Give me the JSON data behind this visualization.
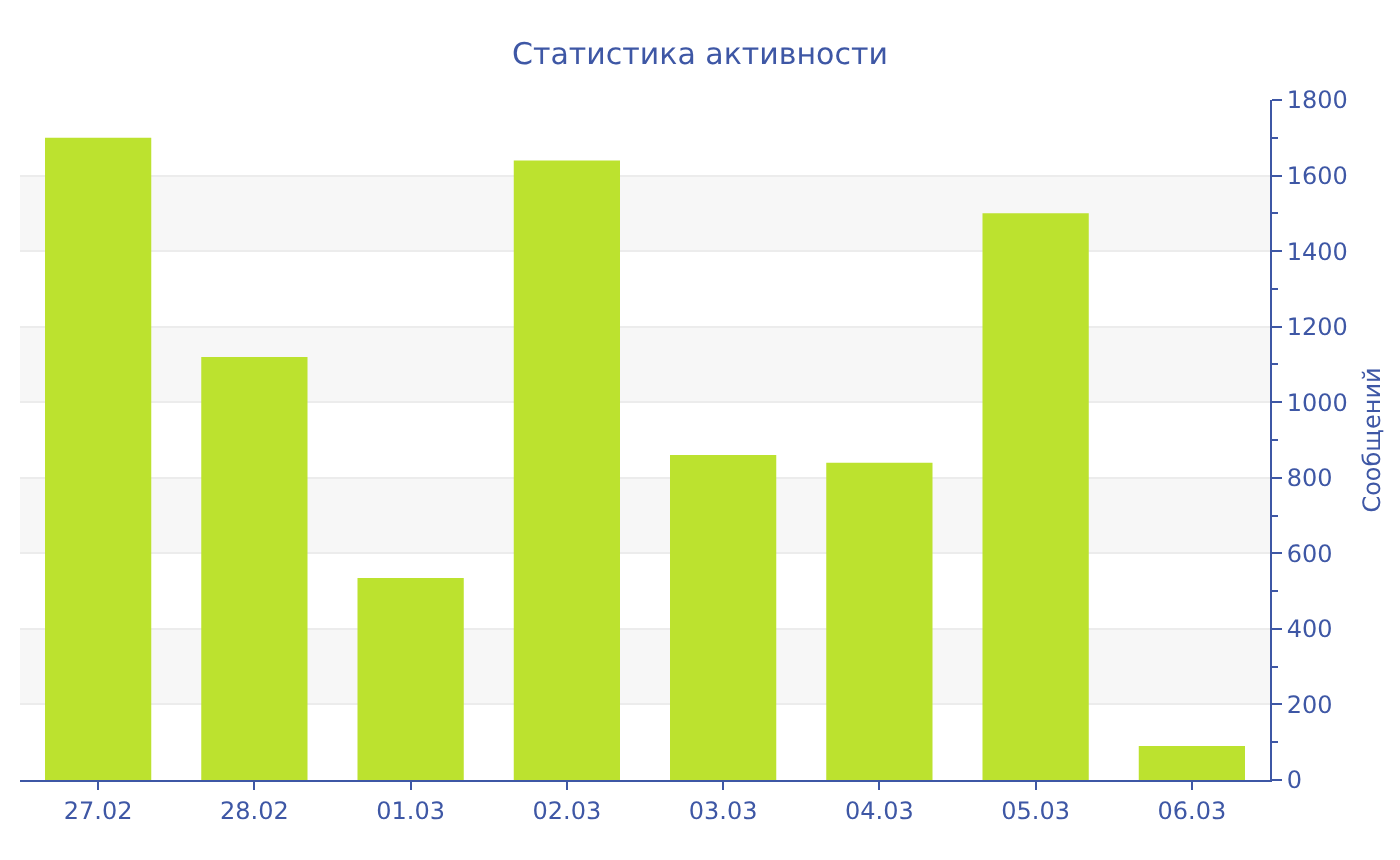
{
  "chart_data": {
    "type": "bar",
    "title": "Статистика активности",
    "ylabel": "Сообщений",
    "categories": [
      "27.02",
      "28.02",
      "01.03",
      "02.03",
      "03.03",
      "04.03",
      "05.03",
      "06.03"
    ],
    "values": [
      1700,
      1120,
      535,
      1640,
      860,
      840,
      1500,
      90
    ],
    "color": "#bce22f",
    "ylim": [
      0,
      1800
    ],
    "yticks": [
      0,
      200,
      400,
      600,
      800,
      1000,
      1200,
      1400,
      1600,
      1800
    ],
    "grid": "y",
    "legend": false
  }
}
